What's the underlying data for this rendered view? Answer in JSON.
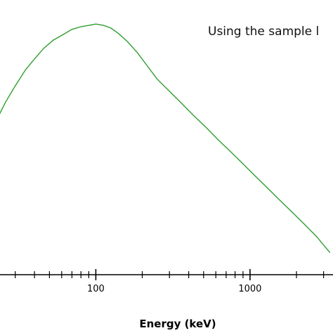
{
  "chart_data": {
    "type": "line",
    "title": "Using the sample l",
    "xlabel": "Energy (keV)",
    "ylabel": "",
    "x_scale": "log",
    "xlim": [
      18,
      3600
    ],
    "ylim": [
      0,
      1
    ],
    "grid": false,
    "legend": "none",
    "colors": {
      "series": "#2e9e2e",
      "axis": "#000000",
      "background": "#ffffff"
    },
    "x_ticks": [
      {
        "value": 100,
        "label": "100"
      },
      {
        "value": 1000,
        "label": "1000"
      }
    ],
    "series": [
      {
        "x": [
          23,
          26,
          30,
          35,
          40,
          46,
          53,
          61,
          70,
          80,
          90,
          100,
          112,
          125,
          140,
          160,
          185,
          215,
          250,
          300,
          360,
          430,
          520,
          620,
          750,
          900,
          1080,
          1300,
          1560,
          1880,
          2260,
          2700,
          3300
        ],
        "y": [
          0.6,
          0.66,
          0.72,
          0.78,
          0.82,
          0.86,
          0.89,
          0.91,
          0.93,
          0.94,
          0.945,
          0.95,
          0.945,
          0.935,
          0.915,
          0.885,
          0.845,
          0.795,
          0.745,
          0.7,
          0.655,
          0.61,
          0.565,
          0.52,
          0.475,
          0.43,
          0.385,
          0.34,
          0.295,
          0.25,
          0.205,
          0.16,
          0.1
        ]
      }
    ]
  }
}
